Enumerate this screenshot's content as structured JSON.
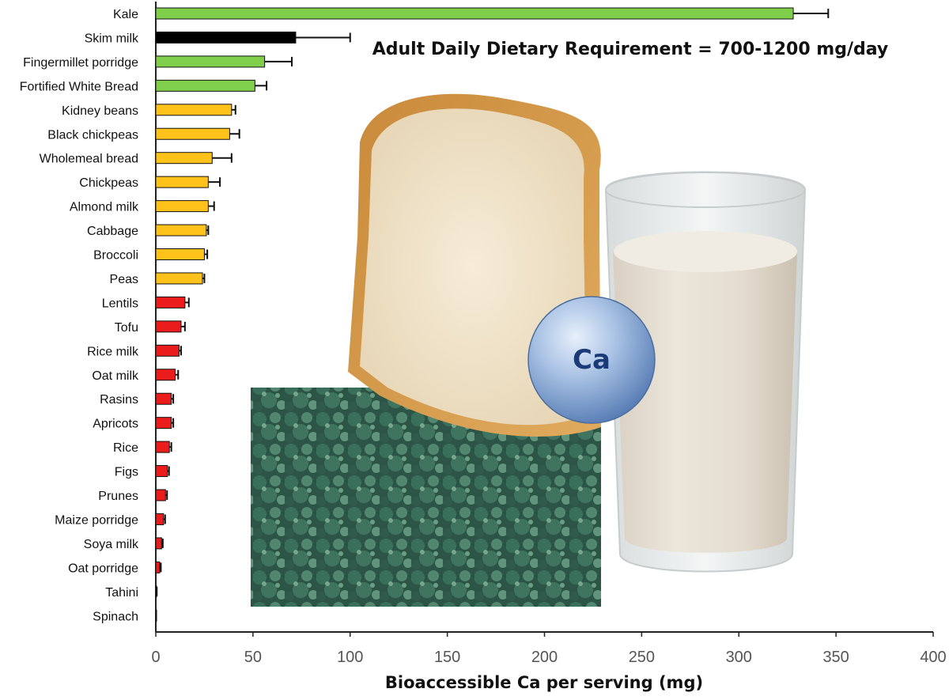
{
  "chart_data": {
    "type": "bar",
    "orientation": "horizontal",
    "categories": [
      "Kale",
      "Skim milk",
      "Fingermillet porridge",
      "Fortified White Bread",
      "Kidney beans",
      "Black chickpeas",
      "Wholemeal bread",
      "Chickpeas",
      "Almond milk",
      "Cabbage",
      "Broccoli",
      "Peas",
      "Lentils",
      "Tofu",
      "Rice milk",
      "Oat milk",
      "Rasins",
      "Apricots",
      "Rice",
      "Figs",
      "Prunes",
      "Maize porridge",
      "Soya milk",
      "Oat porridge",
      "Tahini",
      "Spinach"
    ],
    "values": [
      328,
      72,
      56,
      51,
      39,
      38,
      29,
      27,
      27,
      26,
      25,
      24,
      15,
      13,
      12,
      10,
      8,
      8,
      7,
      6,
      5,
      4,
      3,
      2,
      0.3,
      0.2
    ],
    "errors": [
      18,
      28,
      14,
      6,
      2,
      5,
      10,
      6,
      3,
      1,
      1.5,
      1,
      2,
      2,
      1,
      1.5,
      1,
      1,
      1,
      0.8,
      0.8,
      0.8,
      0.6,
      0.6,
      0.2,
      0.1
    ],
    "bar_colors": [
      "#7fcf4a",
      "#000000",
      "#7fcf4a",
      "#7fcf4a",
      "#ffc21a",
      "#ffc21a",
      "#ffc21a",
      "#ffc21a",
      "#ffc21a",
      "#ffc21a",
      "#ffc21a",
      "#ffc21a",
      "#ea1c1c",
      "#ea1c1c",
      "#ea1c1c",
      "#ea1c1c",
      "#ea1c1c",
      "#ea1c1c",
      "#ea1c1c",
      "#ea1c1c",
      "#ea1c1c",
      "#ea1c1c",
      "#ea1c1c",
      "#ea1c1c",
      "#ea1c1c",
      "#ea1c1c"
    ],
    "xlim": [
      0,
      400
    ],
    "xticks": [
      0,
      50,
      100,
      150,
      200,
      250,
      300,
      350,
      400
    ],
    "xlabel": "Bioaccessible Ca per serving (mg)",
    "annotation": "Adult Daily Dietary Requirement = 700-1200 mg/day",
    "grid": false
  },
  "illustration": {
    "mineral_symbol": "Ca",
    "images": [
      "bread-slice",
      "milk-glass",
      "kale-leaves",
      "calcium-sphere"
    ]
  }
}
